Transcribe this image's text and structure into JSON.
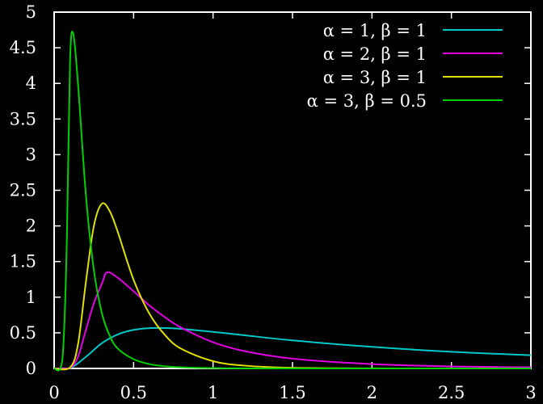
{
  "chart_data": {
    "type": "line",
    "title": "",
    "xlabel": "",
    "ylabel": "",
    "xlim": [
      0,
      3
    ],
    "ylim": [
      0,
      5
    ],
    "grid": false,
    "legend_position": "top-right",
    "background": "#000000",
    "axis_color": "#ffffff",
    "x_ticks": [
      "0",
      "0.5",
      "1",
      "1.5",
      "2",
      "2.5",
      "3"
    ],
    "y_ticks": [
      "0",
      "0.5",
      "1",
      "1.5",
      "2",
      "2.5",
      "3",
      "3.5",
      "4",
      "4.5",
      "5"
    ],
    "series": [
      {
        "name": "α = 1, β = 1",
        "color": "#00c8c8",
        "x": [
          0.0,
          0.1,
          0.2,
          0.3,
          0.4,
          0.5,
          0.6,
          0.7,
          0.8,
          1.0,
          1.2,
          1.5,
          2.0,
          2.5,
          3.0
        ],
        "y": [
          0.0,
          0.0045,
          0.163,
          0.353,
          0.477,
          0.541,
          0.566,
          0.567,
          0.556,
          0.513,
          0.465,
          0.394,
          0.303,
          0.234,
          0.185
        ]
      },
      {
        "name": "α = 2, β = 1",
        "color": "#e000e0",
        "x": [
          0.0,
          0.1,
          0.15,
          0.2,
          0.25,
          0.3,
          0.333,
          0.4,
          0.5,
          0.6,
          0.7,
          0.8,
          1.0,
          1.2,
          1.5,
          2.0,
          2.5,
          3.0
        ],
        "y": [
          0.0,
          0.0091,
          0.163,
          0.541,
          0.916,
          1.187,
          1.35,
          1.274,
          1.083,
          0.883,
          0.715,
          0.573,
          0.368,
          0.242,
          0.137,
          0.061,
          0.029,
          0.015
        ]
      },
      {
        "name": "α = 3, β = 1",
        "color": "#e0e000",
        "x": [
          0.0,
          0.1,
          0.15,
          0.2,
          0.25,
          0.3,
          0.35,
          0.4,
          0.5,
          0.6,
          0.7,
          0.8,
          1.0,
          1.2,
          1.5,
          2.0,
          2.5,
          3.0
        ],
        "y": [
          0.0,
          0.0136,
          0.336,
          1.215,
          1.999,
          2.311,
          2.207,
          1.918,
          1.243,
          0.767,
          0.463,
          0.276,
          0.102,
          0.039,
          0.01,
          0.001,
          0.0002,
          0.0
        ]
      },
      {
        "name": "α = 3, β = 0.5",
        "color": "#00d000",
        "x": [
          0.0,
          0.04,
          0.06,
          0.08,
          0.1,
          0.12,
          0.15,
          0.2,
          0.25,
          0.3,
          0.35,
          0.4,
          0.5,
          0.6,
          0.7,
          0.8,
          1.0,
          1.2,
          1.5,
          2.0,
          3.0
        ],
        "y": [
          0.0,
          0.001,
          0.4,
          1.8,
          4.3,
          4.7,
          4.0,
          2.43,
          1.38,
          0.78,
          0.46,
          0.28,
          0.13,
          0.06,
          0.03,
          0.015,
          0.005,
          0.002,
          0.0005,
          0.0,
          0.0
        ]
      }
    ]
  }
}
